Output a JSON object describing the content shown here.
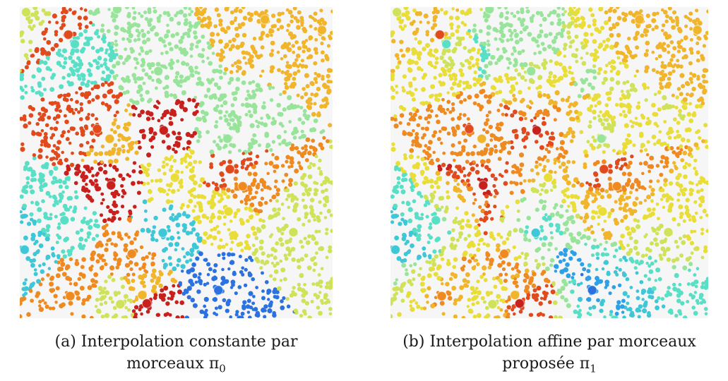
{
  "figures": [
    {
      "id": "a",
      "caption_line1": "(a) Interpolation constante par",
      "caption_line2_text": "morceaux π",
      "caption_line2_sub": "0",
      "colors": [
        "#1f2fd0",
        "#2b72e0",
        "#2fa0e6",
        "#3ec7d6",
        "#58dfc6",
        "#98e49a",
        "#cfe25a",
        "#e9dd3a",
        "#f0b52a",
        "#ee8a20",
        "#e04a1c",
        "#c8201c"
      ]
    },
    {
      "id": "b",
      "caption_line1": "(b) Interpolation affine par morceaux",
      "caption_line2_text": "proposée π",
      "caption_line2_sub": "1",
      "colors": [
        "#1f2fd0",
        "#2b72e0",
        "#2fa0e6",
        "#3ec7d6",
        "#58dfc6",
        "#98e49a",
        "#cfe25a",
        "#e9dd3a",
        "#f0b52a",
        "#ee8a20",
        "#e04a1c",
        "#c8201c"
      ]
    }
  ]
}
